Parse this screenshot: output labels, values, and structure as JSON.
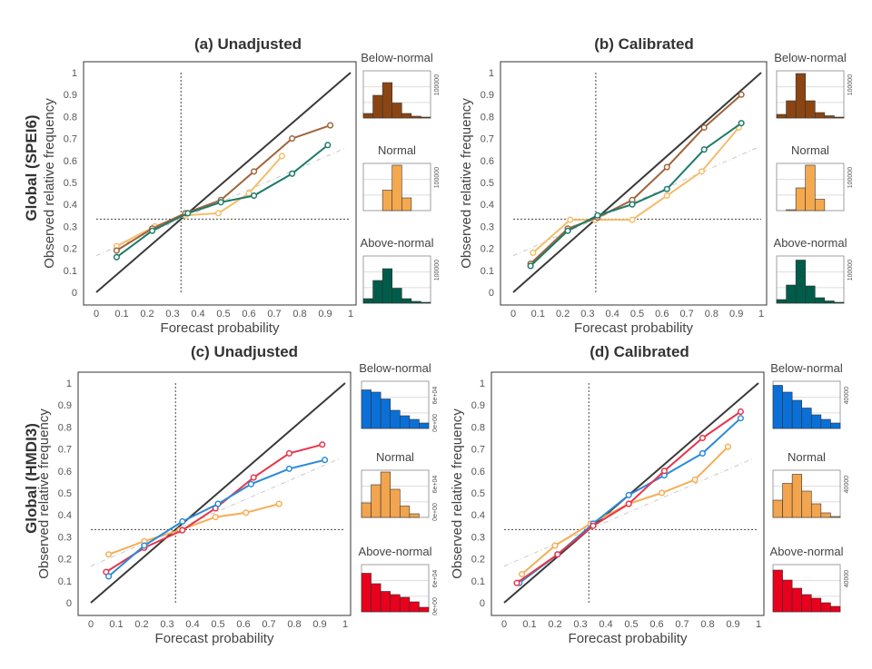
{
  "figure": {
    "row_labels": [
      "Global (SPEI6)",
      "Global (HMDI3)"
    ],
    "line_colors": {
      "row1": {
        "below": "#A0633A",
        "normal": "#F5BD6A",
        "above": "#1C7A69"
      },
      "row2": {
        "below": "#2A8AD8",
        "normal": "#F5AE55",
        "above": "#E8344A"
      }
    },
    "hist_fill": {
      "row1": {
        "below": "#8B4513",
        "normal": "#F5A94E",
        "above": "#005C4A"
      },
      "row2": {
        "below": "#0A70D8",
        "normal": "#F2A54E",
        "above": "#E8001C"
      }
    },
    "hist_labels": [
      "Below-normal",
      "Normal",
      "Above-normal"
    ]
  },
  "chart_data": [
    {
      "id": "a",
      "type": "line",
      "title": "(a) Unadjusted",
      "xlabel": "Forecast probability",
      "ylabel": "Observed relative frequency",
      "xlim": [
        0,
        1
      ],
      "ylim": [
        0,
        1
      ],
      "ticks": [
        "0",
        "0.1",
        "0.2",
        "0.3",
        "0.4",
        "0.5",
        "0.6",
        "0.7",
        "0.8",
        "0.9",
        "1"
      ],
      "climatology": 0.333,
      "series": [
        {
          "key": "normal",
          "x": [
            0.08,
            0.23,
            0.35,
            0.48,
            0.6,
            0.73
          ],
          "y": [
            0.21,
            0.3,
            0.35,
            0.36,
            0.45,
            0.62
          ]
        },
        {
          "key": "below",
          "x": [
            0.08,
            0.22,
            0.35,
            0.49,
            0.62,
            0.77,
            0.92
          ],
          "y": [
            0.19,
            0.29,
            0.36,
            0.42,
            0.55,
            0.7,
            0.76
          ]
        },
        {
          "key": "above",
          "x": [
            0.08,
            0.22,
            0.36,
            0.49,
            0.62,
            0.77,
            0.91
          ],
          "y": [
            0.16,
            0.28,
            0.36,
            0.41,
            0.44,
            0.54,
            0.67
          ]
        }
      ],
      "histograms": [
        {
          "key": "below",
          "values": [
            0.1,
            0.5,
            0.78,
            0.33,
            0.1,
            0.04,
            0.02
          ],
          "tick": "100000"
        },
        {
          "key": "normal",
          "values": [
            0.0,
            0.0,
            0.45,
            1.0,
            0.28,
            0.0,
            0.0
          ],
          "tick": "100000"
        },
        {
          "key": "above",
          "values": [
            0.1,
            0.5,
            0.76,
            0.33,
            0.1,
            0.04,
            0.02
          ],
          "tick": "100000"
        }
      ]
    },
    {
      "id": "b",
      "type": "line",
      "title": "(b) Calibrated",
      "xlabel": "Forecast probability",
      "ylabel": "Observed relative frequency",
      "xlim": [
        0,
        1
      ],
      "ylim": [
        0,
        1
      ],
      "ticks": [
        "0",
        "0.1",
        "0.2",
        "0.3",
        "0.4",
        "0.5",
        "0.6",
        "0.7",
        "0.8",
        "0.9",
        "1"
      ],
      "climatology": 0.333,
      "series": [
        {
          "key": "normal",
          "x": [
            0.08,
            0.23,
            0.33,
            0.48,
            0.62,
            0.76,
            0.91
          ],
          "y": [
            0.18,
            0.33,
            0.33,
            0.33,
            0.44,
            0.55,
            0.75
          ]
        },
        {
          "key": "below",
          "x": [
            0.07,
            0.22,
            0.34,
            0.48,
            0.62,
            0.77,
            0.92
          ],
          "y": [
            0.13,
            0.29,
            0.34,
            0.42,
            0.57,
            0.75,
            0.9
          ]
        },
        {
          "key": "above",
          "x": [
            0.07,
            0.22,
            0.34,
            0.48,
            0.62,
            0.77,
            0.92
          ],
          "y": [
            0.12,
            0.28,
            0.35,
            0.4,
            0.47,
            0.65,
            0.77
          ]
        }
      ],
      "histograms": [
        {
          "key": "below",
          "values": [
            0.08,
            0.38,
            0.98,
            0.38,
            0.12,
            0.05,
            0.02
          ],
          "tick": "100000"
        },
        {
          "key": "normal",
          "values": [
            0.0,
            0.02,
            0.5,
            1.0,
            0.25,
            0.0,
            0.0
          ],
          "tick": "100000"
        },
        {
          "key": "above",
          "values": [
            0.08,
            0.4,
            0.95,
            0.38,
            0.12,
            0.05,
            0.02
          ],
          "tick": "100000"
        }
      ]
    },
    {
      "id": "c",
      "type": "line",
      "title": "(c) Unadjusted",
      "xlabel": "Forecast probability",
      "ylabel": "Observed relative frequency",
      "xlim": [
        0,
        1
      ],
      "ylim": [
        0,
        1
      ],
      "ticks": [
        "0",
        "0.1",
        "0.2",
        "0.3",
        "0.4",
        "0.5",
        "0.6",
        "0.7",
        "0.8",
        "0.9",
        "1"
      ],
      "climatology": 0.333,
      "series": [
        {
          "key": "normal",
          "x": [
            0.07,
            0.21,
            0.35,
            0.49,
            0.61,
            0.74
          ],
          "y": [
            0.22,
            0.28,
            0.33,
            0.39,
            0.41,
            0.45
          ]
        },
        {
          "key": "above",
          "x": [
            0.06,
            0.21,
            0.36,
            0.49,
            0.64,
            0.78,
            0.91
          ],
          "y": [
            0.14,
            0.25,
            0.33,
            0.43,
            0.57,
            0.68,
            0.72
          ]
        },
        {
          "key": "below",
          "x": [
            0.07,
            0.21,
            0.36,
            0.5,
            0.63,
            0.78,
            0.92
          ],
          "y": [
            0.12,
            0.26,
            0.37,
            0.45,
            0.54,
            0.61,
            0.65
          ]
        }
      ],
      "histograms": [
        {
          "key": "below",
          "values": [
            0.85,
            0.8,
            0.65,
            0.4,
            0.28,
            0.2,
            0.12
          ],
          "tick": "6e+04",
          "tick0": "0e+00"
        },
        {
          "key": "normal",
          "values": [
            0.32,
            0.72,
            1.0,
            0.62,
            0.25,
            0.08,
            0.0
          ],
          "tick": "6e+04",
          "tick0": "0e+00"
        },
        {
          "key": "above",
          "values": [
            0.85,
            0.62,
            0.45,
            0.38,
            0.32,
            0.22,
            0.1
          ],
          "tick": "6e+04",
          "tick0": "0e+00"
        }
      ]
    },
    {
      "id": "d",
      "type": "line",
      "title": "(d) Calibrated",
      "xlabel": "Forecast probability",
      "ylabel": "Observed relative frequency",
      "xlim": [
        0,
        1
      ],
      "ylim": [
        0,
        1
      ],
      "ticks": [
        "0",
        "0.1",
        "0.2",
        "0.3",
        "0.4",
        "0.5",
        "0.6",
        "0.7",
        "0.8",
        "0.9",
        "1"
      ],
      "climatology": 0.333,
      "series": [
        {
          "key": "normal",
          "x": [
            0.07,
            0.2,
            0.34,
            0.49,
            0.62,
            0.75,
            0.88
          ],
          "y": [
            0.13,
            0.26,
            0.36,
            0.45,
            0.5,
            0.56,
            0.71
          ]
        },
        {
          "key": "below",
          "x": [
            0.06,
            0.21,
            0.35,
            0.49,
            0.63,
            0.78,
            0.93
          ],
          "y": [
            0.09,
            0.22,
            0.36,
            0.49,
            0.58,
            0.68,
            0.84
          ]
        },
        {
          "key": "above",
          "x": [
            0.05,
            0.21,
            0.35,
            0.49,
            0.63,
            0.78,
            0.93
          ],
          "y": [
            0.09,
            0.22,
            0.35,
            0.45,
            0.6,
            0.75,
            0.87
          ]
        }
      ],
      "histograms": [
        {
          "key": "below",
          "values": [
            0.95,
            0.8,
            0.62,
            0.45,
            0.3,
            0.2,
            0.12
          ],
          "tick": "40000"
        },
        {
          "key": "normal",
          "values": [
            0.38,
            0.75,
            0.95,
            0.58,
            0.3,
            0.1,
            0.02
          ],
          "tick": "40000"
        },
        {
          "key": "above",
          "values": [
            0.92,
            0.7,
            0.52,
            0.38,
            0.3,
            0.2,
            0.12
          ],
          "tick": "40000"
        }
      ]
    }
  ]
}
